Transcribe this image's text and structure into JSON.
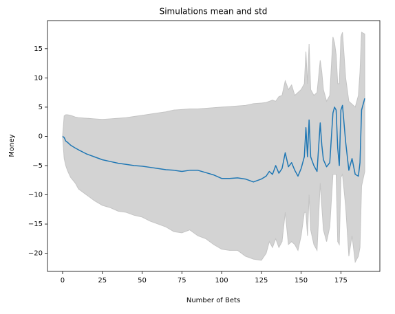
{
  "chart_data": {
    "type": "line",
    "title": "Simulations mean and std",
    "xlabel": "Number of Bets",
    "ylabel": "Money",
    "x": [
      0,
      1,
      2,
      3,
      5,
      8,
      10,
      15,
      20,
      25,
      30,
      35,
      40,
      45,
      50,
      55,
      60,
      65,
      70,
      75,
      80,
      85,
      90,
      95,
      100,
      105,
      110,
      115,
      120,
      125,
      128,
      130,
      132,
      134,
      136,
      138,
      140,
      142,
      144,
      146,
      148,
      150,
      152,
      153,
      154,
      155,
      156,
      158,
      160,
      162,
      163,
      164,
      166,
      168,
      170,
      171,
      172,
      173,
      174,
      175,
      176,
      178,
      180,
      182,
      184,
      186,
      187,
      188,
      190
    ],
    "series": [
      {
        "color": "#1f77b4",
        "values": [
          0,
          -0.2,
          -0.8,
          -1.0,
          -1.5,
          -2.0,
          -2.3,
          -3.0,
          -3.5,
          -4.0,
          -4.3,
          -4.6,
          -4.8,
          -5.0,
          -5.1,
          -5.3,
          -5.5,
          -5.7,
          -5.8,
          -6.0,
          -5.8,
          -5.8,
          -6.2,
          -6.6,
          -7.2,
          -7.2,
          -7.1,
          -7.3,
          -7.8,
          -7.3,
          -6.8,
          -6.0,
          -6.5,
          -5.0,
          -6.3,
          -5.5,
          -2.8,
          -5.2,
          -4.5,
          -5.8,
          -6.8,
          -5.5,
          -3.5,
          1.5,
          -3.5,
          2.8,
          -3.5,
          -5.0,
          -6.0,
          2.3,
          -1.5,
          -4.0,
          -5.2,
          -4.5,
          4.0,
          5.0,
          4.5,
          -2.0,
          -5.0,
          4.5,
          5.3,
          -1.0,
          -5.8,
          -3.8,
          -6.5,
          -6.8,
          -4.5,
          4.5,
          6.5
        ]
      }
    ],
    "band": {
      "color": "#d3d3d3",
      "upper": [
        0,
        3.5,
        3.7,
        3.7,
        3.6,
        3.3,
        3.2,
        3.1,
        3.0,
        2.9,
        3.0,
        3.1,
        3.2,
        3.4,
        3.6,
        3.8,
        4.0,
        4.2,
        4.5,
        4.6,
        4.7,
        4.7,
        4.8,
        4.9,
        5.0,
        5.1,
        5.2,
        5.3,
        5.6,
        5.7,
        5.8,
        6.0,
        6.2,
        6.0,
        6.8,
        7.0,
        9.5,
        8.0,
        8.8,
        7.0,
        7.5,
        8.0,
        9.0,
        14.5,
        9.0,
        15.8,
        8.0,
        7.0,
        7.5,
        13.0,
        11.0,
        8.0,
        6.0,
        7.0,
        17.0,
        16.0,
        14.0,
        9.0,
        9.0,
        17.0,
        17.8,
        10.0,
        6.0,
        5.5,
        5.0,
        7.0,
        11.0,
        17.8,
        17.5
      ],
      "lower": [
        0,
        -3.8,
        -5.0,
        -5.8,
        -7.0,
        -8.0,
        -9.0,
        -10.0,
        -11.0,
        -11.8,
        -12.2,
        -12.8,
        -13.0,
        -13.5,
        -13.8,
        -14.5,
        -15.0,
        -15.5,
        -16.3,
        -16.5,
        -16.0,
        -17.0,
        -17.5,
        -18.5,
        -19.3,
        -19.5,
        -19.5,
        -20.5,
        -21.0,
        -21.2,
        -20.0,
        -18.0,
        -19.0,
        -17.5,
        -19.0,
        -18.0,
        -13.0,
        -18.5,
        -18.0,
        -18.5,
        -19.5,
        -17.0,
        -13.0,
        -13.0,
        -17.0,
        -10.0,
        -16.0,
        -18.5,
        -19.5,
        -8.0,
        -12.0,
        -16.0,
        -18.0,
        -15.5,
        -6.5,
        -6.5,
        -6.5,
        -18.0,
        -18.5,
        -7.0,
        -6.5,
        -12.0,
        -20.5,
        -17.0,
        -21.5,
        -20.5,
        -19.0,
        -8.5,
        -6.0
      ]
    },
    "xlim": [
      -9.5,
      199.5
    ],
    "ylim": [
      -23.1,
      19.8
    ],
    "xticks": [
      0,
      25,
      50,
      75,
      100,
      125,
      150,
      175
    ],
    "yticks": [
      {
        "value": -20,
        "label": "−20"
      },
      {
        "value": -15,
        "label": "−15"
      },
      {
        "value": -10,
        "label": "−10"
      },
      {
        "value": -5,
        "label": "−5"
      },
      0,
      5,
      10,
      15
    ]
  }
}
